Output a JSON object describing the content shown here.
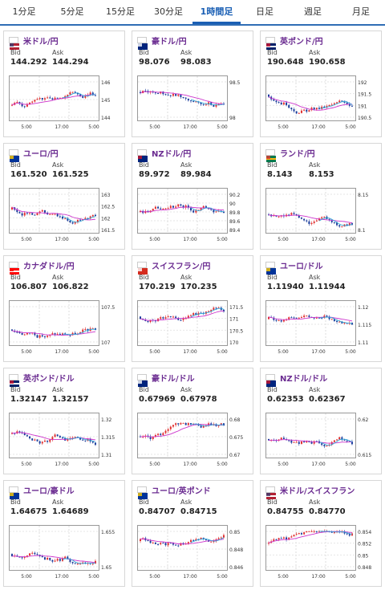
{
  "tabs": [
    "1分足",
    "5分足",
    "15分足",
    "30分足",
    "1時間足",
    "日足",
    "週足",
    "月足"
  ],
  "active_tab": "1時間足",
  "labels": {
    "bid": "Bid",
    "ask": "Ask"
  },
  "colors": {
    "up": "#e03030",
    "down": "#1c3d9c",
    "ma1": "#cc33cc",
    "ma2": "#33a8d8"
  },
  "xticks": [
    "5:00",
    "17:00",
    "5:00"
  ],
  "cards": [
    {
      "name": "米ドル/円",
      "flag": "us",
      "bid": "144.292",
      "ask": "144.294",
      "yticks": [
        "146",
        "145",
        "144"
      ]
    },
    {
      "name": "豪ドル/円",
      "flag": "au",
      "bid": "98.076",
      "ask": "98.083",
      "yticks": [
        "98.5",
        "98"
      ]
    },
    {
      "name": "英ポンド/円",
      "flag": "gb",
      "bid": "190.648",
      "ask": "190.658",
      "yticks": [
        "192",
        "191.5",
        "191",
        "190.5"
      ]
    },
    {
      "name": "ユーロ/円",
      "flag": "eu",
      "bid": "161.520",
      "ask": "161.525",
      "yticks": [
        "163",
        "162.5",
        "162",
        "161.5"
      ]
    },
    {
      "name": "NZドル/円",
      "flag": "nz",
      "bid": "89.972",
      "ask": "89.984",
      "yticks": [
        "90.2",
        "90",
        "89.8",
        "89.6",
        "89.4"
      ]
    },
    {
      "name": "ランド/円",
      "flag": "za",
      "bid": "8.143",
      "ask": "8.153",
      "yticks": [
        "8.15",
        "8.1"
      ]
    },
    {
      "name": "カナダドル/円",
      "flag": "ca",
      "bid": "106.807",
      "ask": "106.822",
      "yticks": [
        "107.5",
        "107"
      ]
    },
    {
      "name": "スイスフラン/円",
      "flag": "ch",
      "bid": "170.219",
      "ask": "170.235",
      "yticks": [
        "171.5",
        "171",
        "170.5",
        "170"
      ]
    },
    {
      "name": "ユーロ/ドル",
      "flag": "eu",
      "bid": "1.11940",
      "ask": "1.11944",
      "yticks": [
        "1.12",
        "1.115",
        "1.11"
      ]
    },
    {
      "name": "英ポンド/ドル",
      "flag": "gb",
      "bid": "1.32147",
      "ask": "1.32157",
      "yticks": [
        "1.32",
        "1.315",
        "1.31"
      ]
    },
    {
      "name": "豪ドル/ドル",
      "flag": "au",
      "bid": "0.67969",
      "ask": "0.67978",
      "yticks": [
        "0.68",
        "0.675",
        "0.67"
      ]
    },
    {
      "name": "NZドル/ドル",
      "flag": "nz",
      "bid": "0.62353",
      "ask": "0.62367",
      "yticks": [
        "0.62",
        "0.615"
      ]
    },
    {
      "name": "ユーロ/豪ドル",
      "flag": "eu",
      "bid": "1.64675",
      "ask": "1.64689",
      "yticks": [
        "1.655",
        "1.65"
      ]
    },
    {
      "name": "ユーロ/英ポンド",
      "flag": "eu",
      "bid": "0.84707",
      "ask": "0.84715",
      "yticks": [
        "0.85",
        "0.848",
        "0.846"
      ]
    },
    {
      "name": "米ドル/スイスフラン",
      "flag": "us",
      "bid": "0.84755",
      "ask": "0.84770",
      "yticks": [
        "0.854",
        "0.852",
        "0.85",
        "0.848"
      ]
    }
  ]
}
